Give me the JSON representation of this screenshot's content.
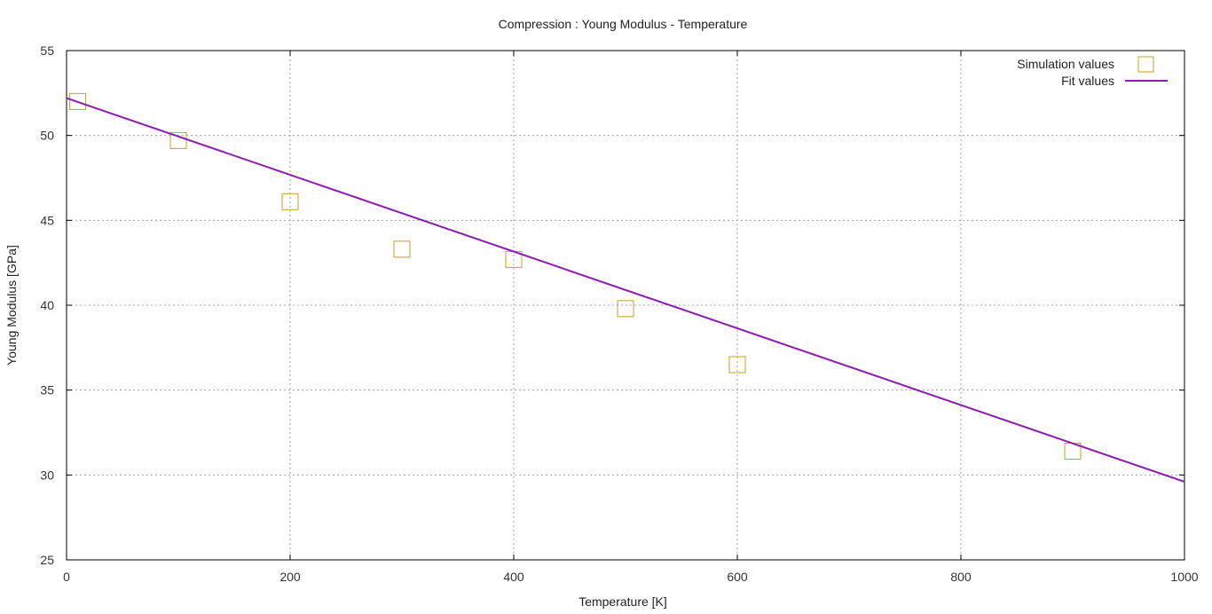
{
  "chart_data": {
    "type": "scatter",
    "title": "Compression : Young Modulus - Temperature",
    "xlabel": "Temperature [K]",
    "ylabel": "Young Modulus [GPa]",
    "xlim": [
      0,
      1000
    ],
    "ylim": [
      25,
      55
    ],
    "xticks": [
      0,
      200,
      400,
      600,
      800,
      1000
    ],
    "yticks": [
      25,
      30,
      35,
      40,
      45,
      50,
      55
    ],
    "grid": true,
    "legend_position": "top-right",
    "series": [
      {
        "name": "Simulation values",
        "kind": "points",
        "marker": "open-square",
        "color": "#c8a020",
        "x": [
          10,
          100,
          200,
          300,
          400,
          500,
          600,
          900
        ],
        "y": [
          52.0,
          49.7,
          46.1,
          43.3,
          42.7,
          39.8,
          36.5,
          31.4
        ]
      },
      {
        "name": "Fit values",
        "kind": "line",
        "color": "#8e1ab0",
        "x": [
          0,
          1000
        ],
        "y": [
          52.2,
          29.6
        ]
      }
    ]
  }
}
